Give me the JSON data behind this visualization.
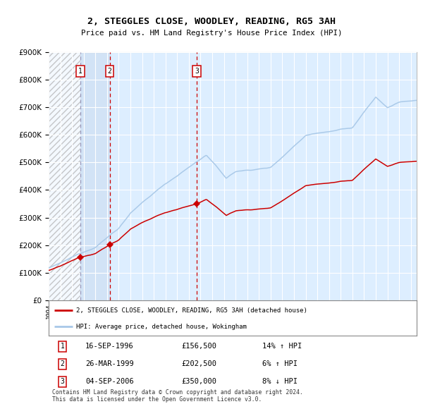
{
  "title": "2, STEGGLES CLOSE, WOODLEY, READING, RG5 3AH",
  "subtitle": "Price paid vs. HM Land Registry's House Price Index (HPI)",
  "hpi_color": "#a8c8e8",
  "price_color": "#cc0000",
  "plot_bg_color": "#ddeeff",
  "grid_color": "#ffffff",
  "sale1_date": 1996.71,
  "sale1_price": 156500,
  "sale2_date": 1999.23,
  "sale2_price": 202500,
  "sale3_date": 2006.67,
  "sale3_price": 350000,
  "legend_price_label": "2, STEGGLES CLOSE, WOODLEY, READING, RG5 3AH (detached house)",
  "legend_hpi_label": "HPI: Average price, detached house, Wokingham",
  "table_rows": [
    [
      "1",
      "16-SEP-1996",
      "£156,500",
      "14% ↑ HPI"
    ],
    [
      "2",
      "26-MAR-1999",
      "£202,500",
      "6% ↑ HPI"
    ],
    [
      "3",
      "04-SEP-2006",
      "£350,000",
      "8% ↓ HPI"
    ]
  ],
  "footer": "Contains HM Land Registry data © Crown copyright and database right 2024.\nThis data is licensed under the Open Government Licence v3.0.",
  "ylim": [
    0,
    900000
  ],
  "yticks": [
    0,
    100000,
    200000,
    300000,
    400000,
    500000,
    600000,
    700000,
    800000,
    900000
  ],
  "xstart": 1994.0,
  "xend": 2025.5
}
